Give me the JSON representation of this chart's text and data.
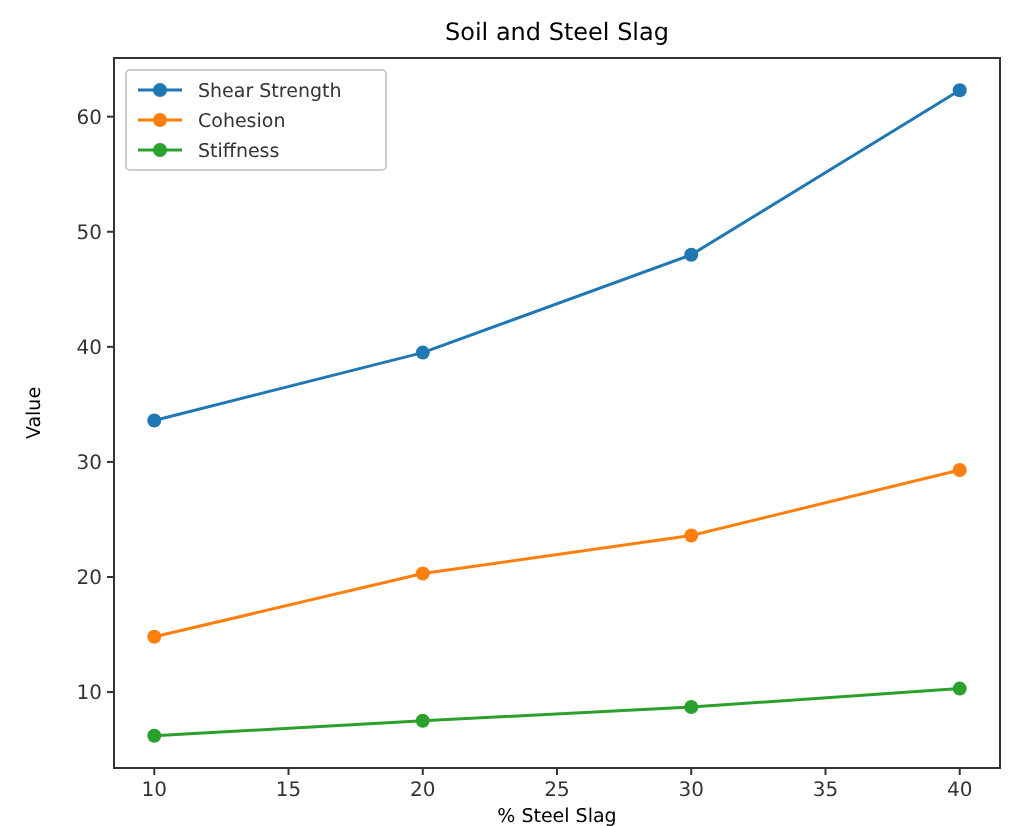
{
  "chart_data": {
    "type": "line",
    "title": "Soil and Steel Slag",
    "xlabel": "% Steel Slag",
    "ylabel": "Value",
    "x": [
      10,
      20,
      30,
      40
    ],
    "series": [
      {
        "name": "Shear Strength",
        "color": "#1f77b4",
        "values": [
          33.6,
          39.5,
          48.0,
          62.3
        ]
      },
      {
        "name": "Cohesion",
        "color": "#ff7f0e",
        "values": [
          14.8,
          20.3,
          23.6,
          29.3
        ]
      },
      {
        "name": "Stiffness",
        "color": "#2ca02c",
        "values": [
          6.2,
          7.5,
          8.7,
          10.3
        ]
      }
    ],
    "xlim": [
      8.5,
      41.5
    ],
    "ylim": [
      3.4,
      65.1
    ],
    "xticks": [
      10,
      15,
      20,
      25,
      30,
      35,
      40
    ],
    "yticks": [
      10,
      20,
      30,
      40,
      50,
      60
    ],
    "marker": "circle",
    "legend": "top left",
    "grid": false
  }
}
